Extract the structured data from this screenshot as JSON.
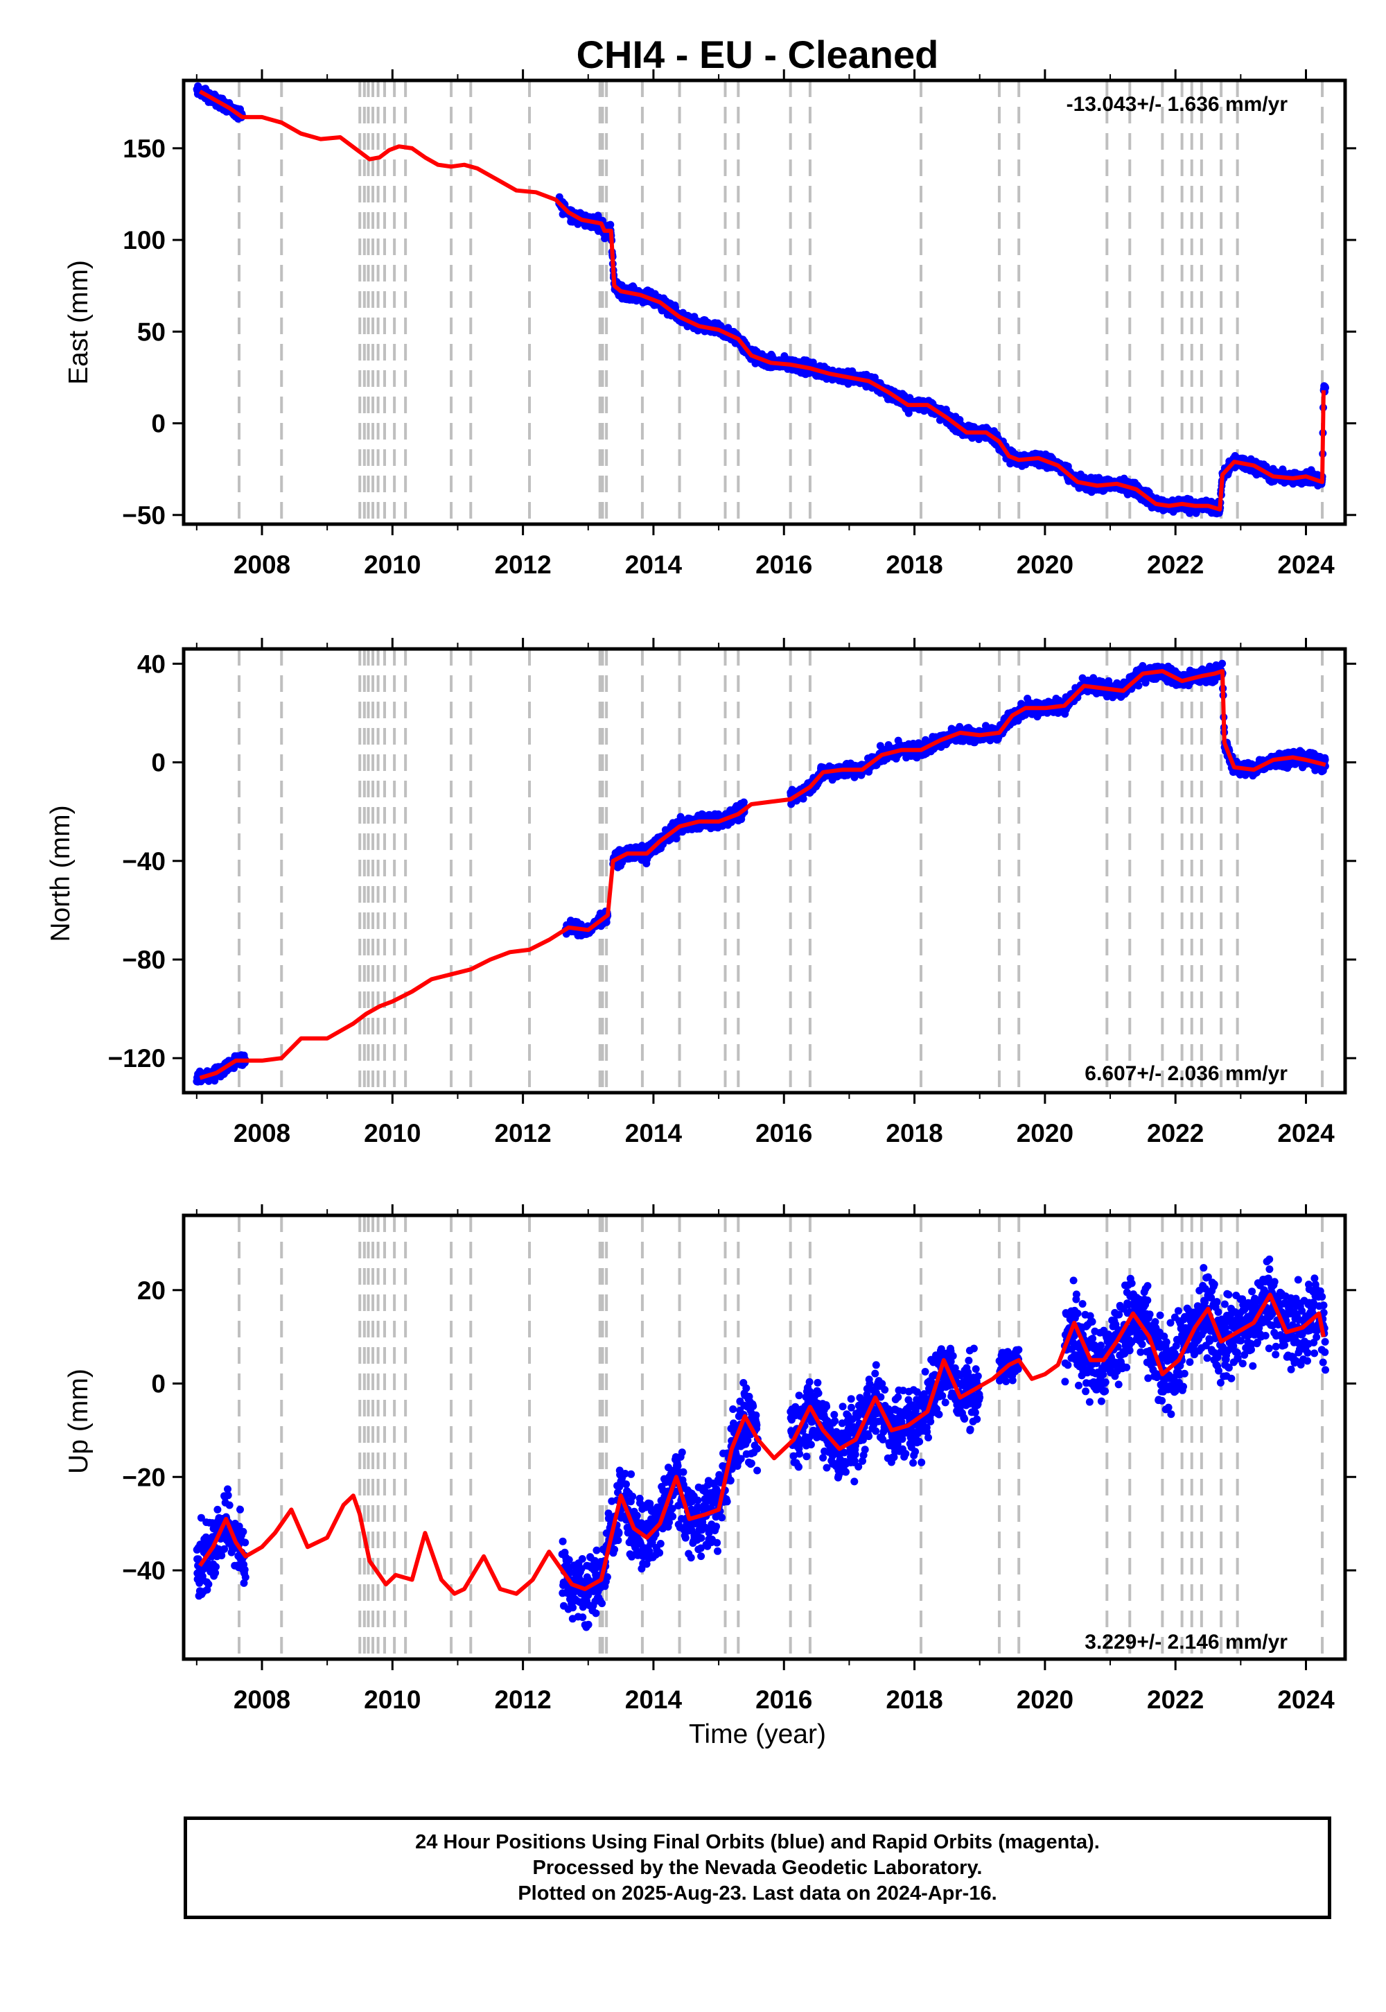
{
  "title": "CHI4  - EU - Cleaned",
  "footer": {
    "line1": "24 Hour Positions Using Final Orbits (blue) and Rapid Orbits (magenta).",
    "line2": "Processed by the Nevada Geodetic Laboratory.",
    "line3": "Plotted on 2025-Aug-23. Last data on 2024-Apr-16."
  },
  "colors": {
    "final_orbits": "#0000ff",
    "model": "#ff0000",
    "event_lines": "#bfbfbf",
    "frame": "#000000"
  },
  "chart_data": [
    {
      "type": "scatter",
      "name": "east",
      "ylabel": "East (mm)",
      "xlabel": "",
      "rate_label": "-13.043+/- 1.636 mm/yr",
      "xlim": [
        2006.8,
        2024.6
      ],
      "ylim": [
        -55,
        187
      ],
      "x_ticks": [
        2008,
        2010,
        2012,
        2014,
        2016,
        2018,
        2020,
        2022,
        2024
      ],
      "y_ticks": [
        -50,
        0,
        50,
        100,
        150
      ],
      "event_lines": [
        2007.65,
        2008.3,
        2009.5,
        2009.57,
        2009.63,
        2009.7,
        2009.78,
        2009.88,
        2010.03,
        2010.2,
        2010.9,
        2011.2,
        2012.1,
        2013.18,
        2013.22,
        2013.28,
        2013.83,
        2014.4,
        2015.1,
        2015.3,
        2016.1,
        2016.4,
        2018.1,
        2019.3,
        2019.6,
        2020.95,
        2021.3,
        2021.8,
        2022.1,
        2022.25,
        2022.4,
        2022.7,
        2022.95,
        2024.25
      ],
      "model_points": [
        [
          2007.05,
          181
        ],
        [
          2007.5,
          172
        ],
        [
          2007.7,
          167
        ],
        [
          2008.0,
          167
        ],
        [
          2008.3,
          164
        ],
        [
          2008.6,
          158
        ],
        [
          2008.9,
          155
        ],
        [
          2009.2,
          156
        ],
        [
          2009.5,
          148
        ],
        [
          2009.65,
          144
        ],
        [
          2009.8,
          145
        ],
        [
          2009.95,
          149
        ],
        [
          2010.1,
          151
        ],
        [
          2010.3,
          150
        ],
        [
          2010.5,
          145
        ],
        [
          2010.7,
          141
        ],
        [
          2010.9,
          140
        ],
        [
          2011.1,
          141
        ],
        [
          2011.3,
          139
        ],
        [
          2011.6,
          133
        ],
        [
          2011.9,
          127
        ],
        [
          2012.2,
          126
        ],
        [
          2012.5,
          122
        ],
        [
          2012.7,
          115
        ],
        [
          2012.9,
          111
        ],
        [
          2013.2,
          109
        ],
        [
          2013.25,
          105
        ],
        [
          2013.35,
          105
        ],
        [
          2013.4,
          75
        ],
        [
          2013.5,
          72
        ],
        [
          2013.8,
          70
        ],
        [
          2014.1,
          66
        ],
        [
          2014.4,
          58
        ],
        [
          2014.7,
          53
        ],
        [
          2015.0,
          51
        ],
        [
          2015.3,
          46
        ],
        [
          2015.5,
          37
        ],
        [
          2015.8,
          33
        ],
        [
          2016.1,
          32
        ],
        [
          2016.4,
          30
        ],
        [
          2016.7,
          27
        ],
        [
          2017.0,
          25
        ],
        [
          2017.3,
          23
        ],
        [
          2017.6,
          17
        ],
        [
          2017.9,
          10
        ],
        [
          2018.2,
          10
        ],
        [
          2018.5,
          3
        ],
        [
          2018.8,
          -5
        ],
        [
          2019.1,
          -5
        ],
        [
          2019.3,
          -10
        ],
        [
          2019.45,
          -18
        ],
        [
          2019.6,
          -20
        ],
        [
          2019.9,
          -19
        ],
        [
          2020.2,
          -23
        ],
        [
          2020.5,
          -32
        ],
        [
          2020.8,
          -34
        ],
        [
          2021.1,
          -33
        ],
        [
          2021.4,
          -36
        ],
        [
          2021.7,
          -44
        ],
        [
          2021.9,
          -45
        ],
        [
          2022.1,
          -44
        ],
        [
          2022.3,
          -45
        ],
        [
          2022.5,
          -45
        ],
        [
          2022.68,
          -47
        ],
        [
          2022.72,
          -28
        ],
        [
          2022.9,
          -21
        ],
        [
          2023.2,
          -23
        ],
        [
          2023.5,
          -29
        ],
        [
          2023.8,
          -30
        ],
        [
          2024.0,
          -29
        ],
        [
          2024.25,
          -32
        ],
        [
          2024.27,
          18
        ]
      ],
      "data_segments": [
        [
          2007.0,
          2007.7,
          2.5
        ],
        [
          2012.55,
          2013.4,
          3.0
        ],
        [
          2013.4,
          2024.3,
          3.0
        ]
      ]
    },
    {
      "type": "scatter",
      "name": "north",
      "ylabel": "North (mm)",
      "xlabel": "",
      "rate_label": "6.607+/- 2.036 mm/yr",
      "xlim": [
        2006.8,
        2024.6
      ],
      "ylim": [
        -134,
        46
      ],
      "x_ticks": [
        2008,
        2010,
        2012,
        2014,
        2016,
        2018,
        2020,
        2022,
        2024
      ],
      "y_ticks": [
        -120,
        -80,
        -40,
        0,
        40
      ],
      "event_lines": [
        2007.65,
        2008.3,
        2009.5,
        2009.57,
        2009.63,
        2009.7,
        2009.78,
        2009.88,
        2010.03,
        2010.2,
        2010.9,
        2011.2,
        2012.1,
        2013.18,
        2013.22,
        2013.28,
        2013.83,
        2014.4,
        2015.1,
        2015.3,
        2016.1,
        2016.4,
        2018.1,
        2019.3,
        2019.6,
        2020.95,
        2021.3,
        2021.8,
        2022.1,
        2022.25,
        2022.4,
        2022.7,
        2022.95,
        2024.25
      ],
      "model_points": [
        [
          2007.05,
          -128
        ],
        [
          2007.3,
          -126
        ],
        [
          2007.6,
          -121
        ],
        [
          2008.0,
          -121
        ],
        [
          2008.3,
          -120
        ],
        [
          2008.6,
          -112
        ],
        [
          2009.0,
          -112
        ],
        [
          2009.4,
          -106
        ],
        [
          2009.6,
          -102
        ],
        [
          2009.8,
          -99
        ],
        [
          2010.0,
          -97
        ],
        [
          2010.3,
          -93
        ],
        [
          2010.6,
          -88
        ],
        [
          2010.9,
          -86
        ],
        [
          2011.2,
          -84
        ],
        [
          2011.5,
          -80
        ],
        [
          2011.8,
          -77
        ],
        [
          2012.1,
          -76
        ],
        [
          2012.4,
          -72
        ],
        [
          2012.7,
          -67
        ],
        [
          2013.0,
          -68
        ],
        [
          2013.3,
          -62
        ],
        [
          2013.38,
          -40
        ],
        [
          2013.6,
          -37
        ],
        [
          2013.9,
          -37
        ],
        [
          2014.1,
          -32
        ],
        [
          2014.4,
          -26
        ],
        [
          2014.7,
          -24
        ],
        [
          2015.0,
          -24
        ],
        [
          2015.3,
          -21
        ],
        [
          2015.5,
          -17
        ],
        [
          2015.8,
          -16
        ],
        [
          2016.1,
          -15
        ],
        [
          2016.4,
          -10
        ],
        [
          2016.6,
          -4
        ],
        [
          2016.9,
          -3
        ],
        [
          2017.2,
          -3
        ],
        [
          2017.5,
          3
        ],
        [
          2017.8,
          5
        ],
        [
          2018.1,
          5
        ],
        [
          2018.4,
          9
        ],
        [
          2018.7,
          12
        ],
        [
          2019.0,
          11
        ],
        [
          2019.3,
          12
        ],
        [
          2019.5,
          19
        ],
        [
          2019.7,
          22
        ],
        [
          2020.0,
          22
        ],
        [
          2020.3,
          23
        ],
        [
          2020.6,
          31
        ],
        [
          2020.9,
          30
        ],
        [
          2021.2,
          29
        ],
        [
          2021.5,
          36
        ],
        [
          2021.8,
          37
        ],
        [
          2022.1,
          33
        ],
        [
          2022.4,
          35
        ],
        [
          2022.6,
          36
        ],
        [
          2022.72,
          37
        ],
        [
          2022.75,
          8
        ],
        [
          2022.9,
          -2
        ],
        [
          2023.2,
          -3
        ],
        [
          2023.5,
          1
        ],
        [
          2023.8,
          2
        ],
        [
          2024.0,
          1
        ],
        [
          2024.3,
          -1
        ]
      ],
      "data_segments": [
        [
          2007.0,
          2007.75,
          2.0
        ],
        [
          2012.65,
          2013.3,
          2.0
        ],
        [
          2013.38,
          2015.4,
          2.5
        ],
        [
          2016.1,
          2024.3,
          2.5
        ]
      ]
    },
    {
      "type": "scatter",
      "name": "up",
      "ylabel": "Up (mm)",
      "xlabel": "Time (year)",
      "rate_label": "3.229+/- 2.146 mm/yr",
      "xlim": [
        2006.8,
        2024.6
      ],
      "ylim": [
        -59,
        36
      ],
      "x_ticks": [
        2008,
        2010,
        2012,
        2014,
        2016,
        2018,
        2020,
        2022,
        2024
      ],
      "y_ticks": [
        -40,
        -20,
        0,
        20
      ],
      "event_lines": [
        2007.65,
        2008.3,
        2009.5,
        2009.57,
        2009.63,
        2009.7,
        2009.78,
        2009.88,
        2010.03,
        2010.2,
        2010.9,
        2011.2,
        2012.1,
        2013.18,
        2013.22,
        2013.28,
        2013.83,
        2014.4,
        2015.1,
        2015.3,
        2016.1,
        2016.4,
        2018.1,
        2019.3,
        2019.6,
        2020.95,
        2021.3,
        2021.8,
        2022.1,
        2022.25,
        2022.4,
        2022.7,
        2022.95,
        2024.25
      ],
      "model_points": [
        [
          2007.05,
          -39
        ],
        [
          2007.25,
          -35
        ],
        [
          2007.45,
          -29
        ],
        [
          2007.6,
          -34
        ],
        [
          2007.75,
          -37
        ],
        [
          2008.0,
          -35
        ],
        [
          2008.2,
          -32
        ],
        [
          2008.45,
          -27
        ],
        [
          2008.7,
          -35
        ],
        [
          2009.0,
          -33
        ],
        [
          2009.25,
          -26
        ],
        [
          2009.4,
          -24
        ],
        [
          2009.5,
          -28
        ],
        [
          2009.65,
          -38
        ],
        [
          2009.8,
          -41
        ],
        [
          2009.9,
          -43
        ],
        [
          2010.05,
          -41
        ],
        [
          2010.3,
          -42
        ],
        [
          2010.5,
          -32
        ],
        [
          2010.75,
          -42
        ],
        [
          2010.95,
          -45
        ],
        [
          2011.1,
          -44
        ],
        [
          2011.4,
          -37
        ],
        [
          2011.65,
          -44
        ],
        [
          2011.9,
          -45
        ],
        [
          2012.15,
          -42
        ],
        [
          2012.4,
          -36
        ],
        [
          2012.6,
          -40
        ],
        [
          2012.75,
          -43
        ],
        [
          2012.95,
          -44
        ],
        [
          2013.2,
          -42
        ],
        [
          2013.35,
          -33
        ],
        [
          2013.5,
          -24
        ],
        [
          2013.7,
          -31
        ],
        [
          2013.9,
          -33
        ],
        [
          2014.1,
          -30
        ],
        [
          2014.35,
          -20
        ],
        [
          2014.55,
          -29
        ],
        [
          2014.8,
          -28
        ],
        [
          2015.0,
          -27
        ],
        [
          2015.2,
          -14
        ],
        [
          2015.4,
          -7
        ],
        [
          2015.6,
          -12
        ],
        [
          2015.85,
          -16
        ],
        [
          2016.15,
          -12
        ],
        [
          2016.4,
          -5
        ],
        [
          2016.6,
          -10
        ],
        [
          2016.85,
          -14
        ],
        [
          2017.1,
          -12
        ],
        [
          2017.4,
          -3
        ],
        [
          2017.65,
          -10
        ],
        [
          2017.9,
          -9
        ],
        [
          2018.2,
          -6
        ],
        [
          2018.45,
          5
        ],
        [
          2018.7,
          -3
        ],
        [
          2018.95,
          -1
        ],
        [
          2019.2,
          1
        ],
        [
          2019.45,
          4
        ],
        [
          2019.6,
          5
        ],
        [
          2019.8,
          1
        ],
        [
          2020.0,
          2
        ],
        [
          2020.2,
          4
        ],
        [
          2020.45,
          13
        ],
        [
          2020.7,
          5
        ],
        [
          2020.9,
          5
        ],
        [
          2021.1,
          9
        ],
        [
          2021.35,
          15
        ],
        [
          2021.6,
          10
        ],
        [
          2021.8,
          2
        ],
        [
          2022.05,
          5
        ],
        [
          2022.3,
          12
        ],
        [
          2022.5,
          16
        ],
        [
          2022.7,
          9
        ],
        [
          2022.95,
          11
        ],
        [
          2023.2,
          13
        ],
        [
          2023.45,
          19
        ],
        [
          2023.7,
          11
        ],
        [
          2023.95,
          12
        ],
        [
          2024.2,
          15
        ],
        [
          2024.27,
          10
        ]
      ],
      "data_segments": [
        [
          2007.0,
          2007.75,
          6.5
        ],
        [
          2012.6,
          2013.35,
          6.0
        ],
        [
          2013.35,
          2015.6,
          6.5
        ],
        [
          2016.1,
          2019.0,
          6.5
        ],
        [
          2019.3,
          2019.6,
          3.0
        ],
        [
          2020.3,
          2024.3,
          7.5
        ]
      ]
    }
  ]
}
